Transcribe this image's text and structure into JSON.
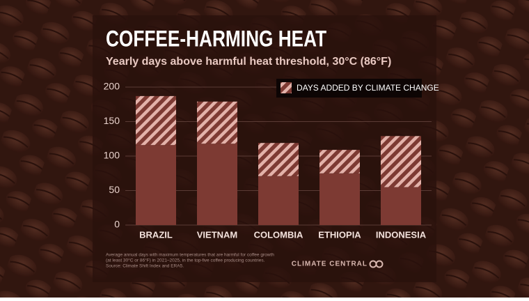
{
  "chart_data": {
    "type": "bar",
    "stacked": true,
    "title": "COFFEE-HARMING HEAT",
    "subtitle": "Yearly days above harmful heat threshold, 30°C (86°F)",
    "categories": [
      "BRAZIL",
      "VIETNAM",
      "COLOMBIA",
      "ETHIOPIA",
      "INDONESIA"
    ],
    "series": [
      {
        "color": "#7d3a33",
        "values": [
          116,
          118,
          71,
          75,
          55
        ]
      },
      {
        "name": "DAYS ADDED BY CLIMATE CHANGE",
        "color": "#7d3a33",
        "stripe_color": "#e3b2aa",
        "hatch": true,
        "values": [
          71,
          61,
          48,
          34,
          74
        ]
      }
    ],
    "ylim": [
      0,
      200
    ],
    "yticks": [
      0,
      50,
      100,
      150,
      200
    ],
    "grid": true,
    "legend": "top-right",
    "notes": [
      "Average annual days with maximum temperatures that are harmful for coffee growth",
      "(at least 30°C or 86°F) in 2021–2025, in the top-five coffee producing countries.",
      "Source: Climate Shift Index and ERA5."
    ],
    "credit": "CLIMATE CENTRAL"
  }
}
